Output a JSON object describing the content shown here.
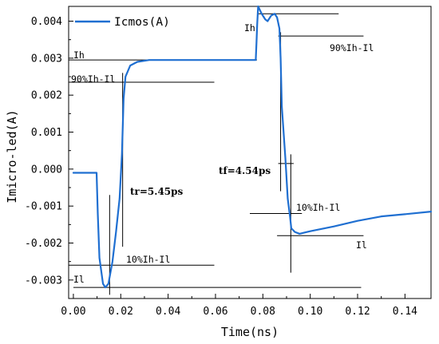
{
  "chart_data": {
    "type": "line",
    "xlabel": "Time(ns)",
    "ylabel": "Imicro-led(A)",
    "xlim": [
      -0.002,
      0.151
    ],
    "ylim": [
      -0.0035,
      0.0044
    ],
    "x_ticks": [
      0.0,
      0.02,
      0.04,
      0.06,
      0.08,
      0.1,
      0.12,
      0.14
    ],
    "x_tick_labels": [
      "0.00",
      "0.02",
      "0.04",
      "0.06",
      "0.08",
      "0.10",
      "0.12",
      "0.14"
    ],
    "y_ticks": [
      -0.003,
      -0.002,
      -0.001,
      0.0,
      0.001,
      0.002,
      0.003,
      0.004
    ],
    "y_tick_labels": [
      "-0.003",
      "-0.002",
      "-0.001",
      "0.000",
      "0.001",
      "0.002",
      "0.003",
      "0.004"
    ],
    "legend": {
      "position": "top-left",
      "label": "Icmos(A)"
    },
    "series": [
      {
        "name": "Icmos(A)",
        "color": "#1f6fd1",
        "x": [
          0.0,
          0.0098,
          0.0103,
          0.011,
          0.0125,
          0.0135,
          0.0148,
          0.0165,
          0.018,
          0.0195,
          0.0205,
          0.0212,
          0.022,
          0.024,
          0.027,
          0.032,
          0.04,
          0.06,
          0.077,
          0.0773,
          0.0776,
          0.078,
          0.0795,
          0.081,
          0.082,
          0.0835,
          0.085,
          0.086,
          0.087,
          0.0875,
          0.088,
          0.0895,
          0.0905,
          0.0915,
          0.092,
          0.0935,
          0.0955,
          0.1,
          0.11,
          0.12,
          0.13,
          0.14,
          0.151
        ],
        "y": [
          -0.0001,
          -0.0001,
          -0.0012,
          -0.0024,
          -0.0031,
          -0.0032,
          -0.0031,
          -0.0025,
          -0.0017,
          -0.0008,
          0.0004,
          0.0019,
          0.0025,
          0.0028,
          0.0029,
          0.00295,
          0.00295,
          0.00295,
          0.00295,
          0.0034,
          0.0039,
          0.0044,
          0.0042,
          0.00405,
          0.004,
          0.00415,
          0.0042,
          0.0041,
          0.0038,
          0.003,
          0.0017,
          0.0003,
          -0.0008,
          -0.0013,
          -0.0016,
          -0.0017,
          -0.00175,
          -0.00168,
          -0.00155,
          -0.0014,
          -0.00128,
          -0.00122,
          -0.00115
        ]
      }
    ],
    "annotations": {
      "Ih_left": {
        "text": "Ih",
        "y": 0.00295
      },
      "p90_left": {
        "text": "90%Ih-Il",
        "y": 0.00235
      },
      "tr": {
        "text": "tr=5.45ps"
      },
      "p10_left": {
        "text": "10%Ih-Il",
        "y": -0.0026
      },
      "Il_left": {
        "text": "Il",
        "y": -0.0032
      },
      "Ih_right": {
        "text": "Ih",
        "y": 0.0042
      },
      "p90_right": {
        "text": "90%Ih-Il",
        "y": 0.0036
      },
      "tf": {
        "text": "tf=4.54ps"
      },
      "p10_right": {
        "text": "10%Ih-Il",
        "y": -0.0012
      },
      "Il_right": {
        "text": "Il",
        "y": -0.0018
      }
    }
  }
}
